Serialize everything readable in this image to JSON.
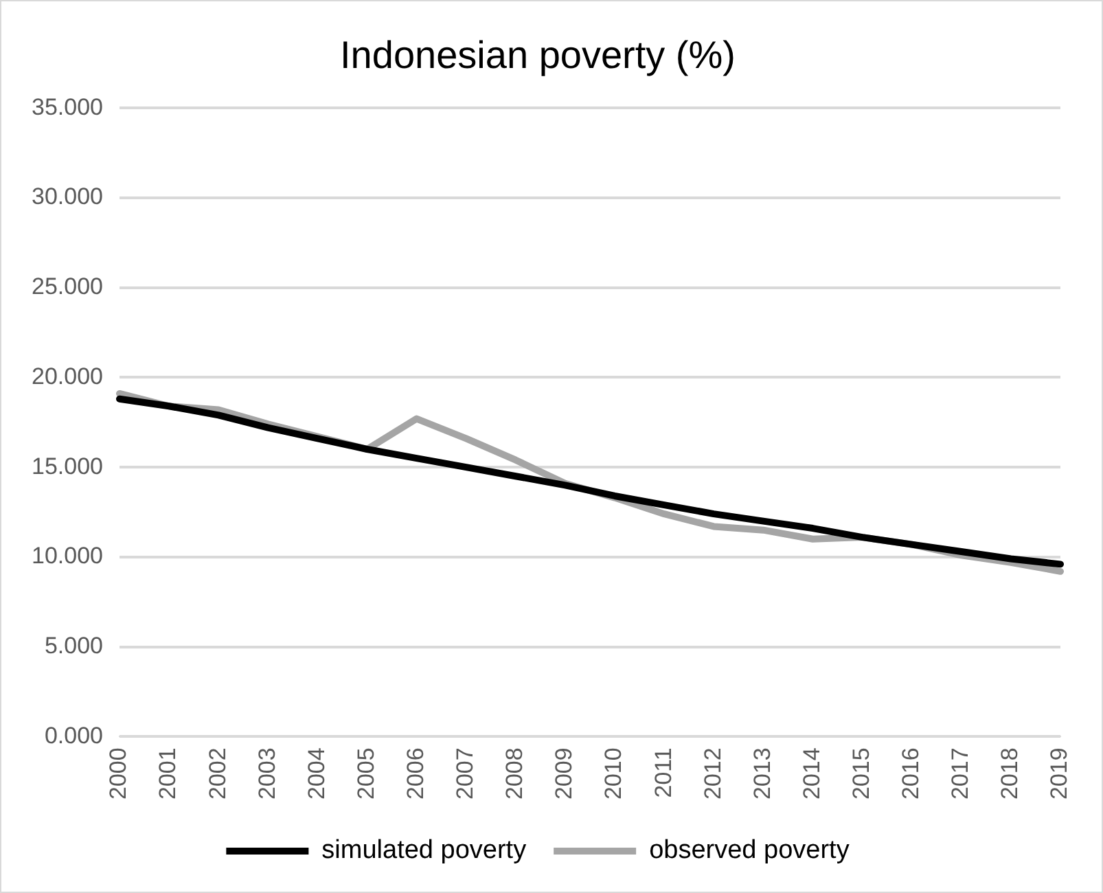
{
  "chart_data": {
    "type": "line",
    "title": "Indonesian poverty (%)",
    "categories": [
      "2000",
      "2001",
      "2002",
      "2003",
      "2004",
      "2005",
      "2006",
      "2007",
      "2008",
      "2009",
      "2010",
      "2011",
      "2012",
      "2013",
      "2014",
      "2015",
      "2016",
      "2017",
      "2018",
      "2019"
    ],
    "series": [
      {
        "name": "simulated poverty",
        "color": "#000000",
        "values": [
          18.8,
          18.4,
          17.9,
          17.2,
          16.6,
          16.0,
          15.5,
          15.0,
          14.5,
          14.0,
          13.4,
          12.9,
          12.4,
          12.0,
          11.6,
          11.1,
          10.7,
          10.3,
          9.9,
          9.6
        ]
      },
      {
        "name": "observed poverty",
        "color": "#a5a5a5",
        "values": [
          19.1,
          18.4,
          18.2,
          17.4,
          16.7,
          16.0,
          17.7,
          16.6,
          15.4,
          14.1,
          13.3,
          12.4,
          11.7,
          11.5,
          11.0,
          11.1,
          10.7,
          10.1,
          9.7,
          9.2
        ]
      }
    ],
    "ylim": [
      0,
      35
    ],
    "yticks": [
      {
        "value": 0,
        "label": "0.000"
      },
      {
        "value": 5,
        "label": "5.000"
      },
      {
        "value": 10,
        "label": "10.000"
      },
      {
        "value": 15,
        "label": "15.000"
      },
      {
        "value": 20,
        "label": "20.000"
      },
      {
        "value": 25,
        "label": "25.000"
      },
      {
        "value": 30,
        "label": "30.000"
      },
      {
        "value": 35,
        "label": "35.000"
      }
    ],
    "grid": "y",
    "legend": "bottom",
    "marker": "none",
    "line_style": "solid"
  }
}
